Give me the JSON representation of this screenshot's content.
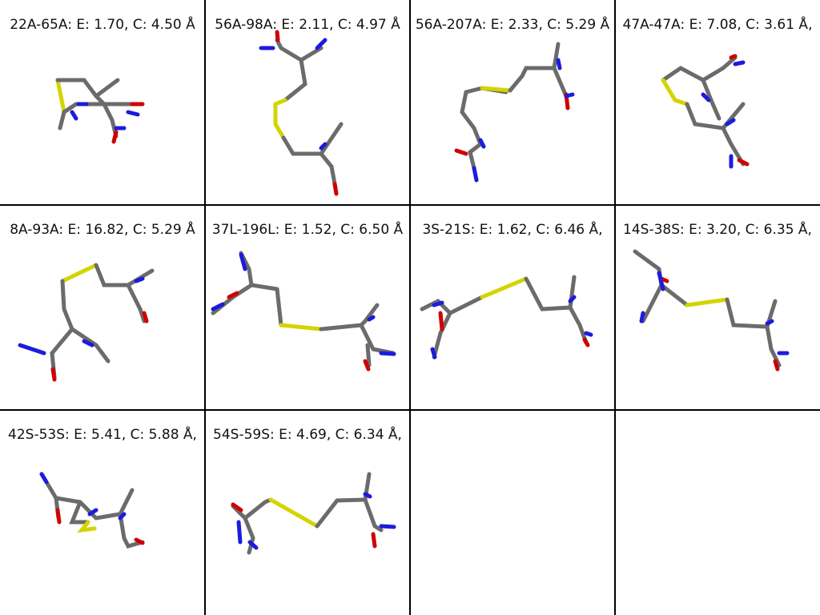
{
  "panels": [
    {
      "label": "22A-65A: E: 1.70, C: 4.50 Å"
    },
    {
      "label": "56A-98A: E: 2.11, C: 4.97 Å"
    },
    {
      "label": "56A-207A: E: 2.33, C: 5.29 Å"
    },
    {
      "label": "47A-47A: E: 7.08, C: 3.61 Å,"
    },
    {
      "label": "8A-93A: E: 16.82, C: 5.29 Å"
    },
    {
      "label": "37L-196L: E: 1.52, C: 6.50 Å"
    },
    {
      "label": "3S-21S: E: 1.62, C: 6.46 Å,"
    },
    {
      "label": "14S-38S: E: 3.20, C: 6.35 Å,"
    },
    {
      "label": "42S-53S: E: 5.41, C: 5.88 Å,"
    },
    {
      "label": "54S-59S: E: 4.69, C: 6.34 Å,"
    },
    {
      "label": ""
    },
    {
      "label": ""
    }
  ],
  "colors": {
    "carbon": "#6b6b6b",
    "sulfur": "#d4d400",
    "nitrogen": "#1c1cdc",
    "oxygen": "#d00000",
    "background": "#ffffff",
    "grid_line": "#000000"
  }
}
